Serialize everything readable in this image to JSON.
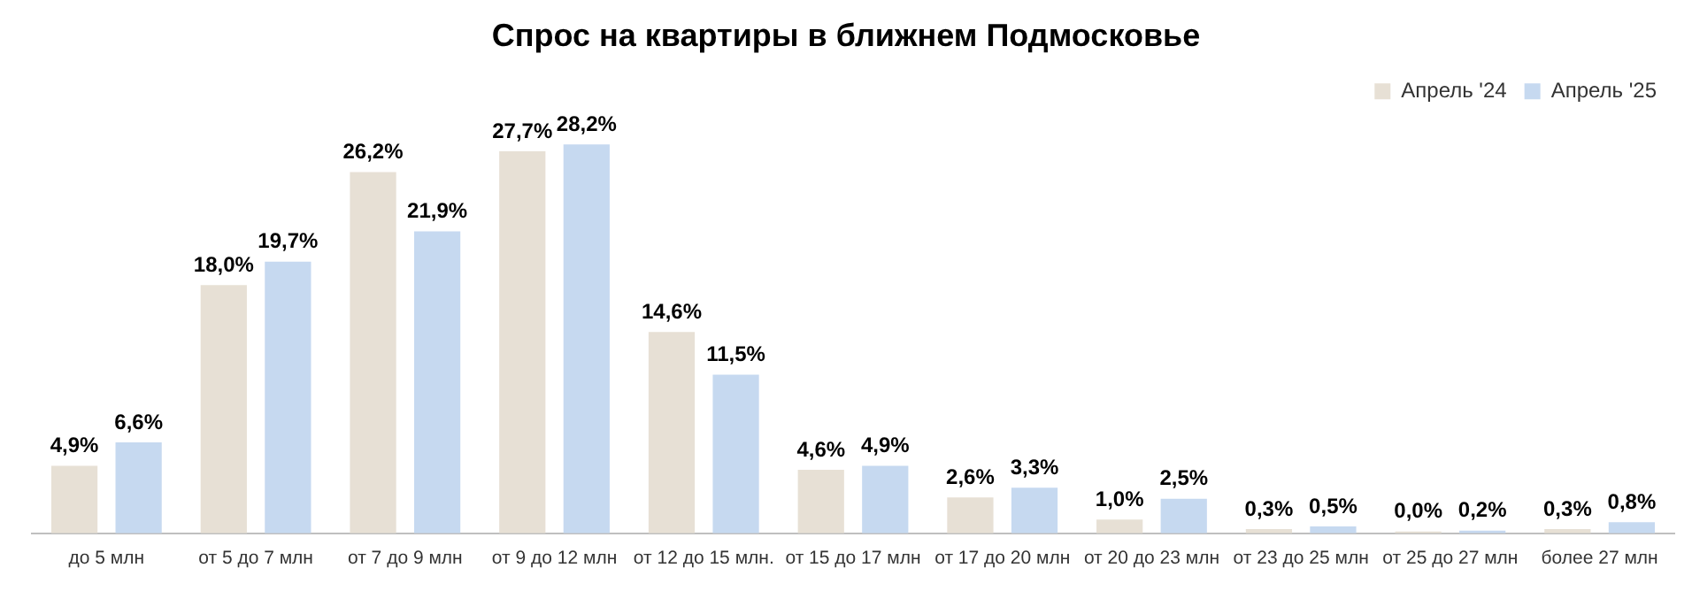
{
  "chart_data": {
    "type": "bar",
    "title": "Спрос на квартиры в ближнем Подмосковье",
    "categories": [
      "до 5 млн",
      "от 5 до 7 млн",
      "от 7 до 9 млн",
      "от 9 до 12 млн",
      "от 12 до 15 млн.",
      "от 15 до 17 млн",
      "от 17 до 20 млн",
      "от 20 до 23 млн",
      "от 23 до 25 млн",
      "от 25 до 27 млн",
      "более 27 млн"
    ],
    "series": [
      {
        "name": "Апрель '24",
        "color": "#e7e0d5",
        "values": [
          4.9,
          18.0,
          26.2,
          27.7,
          14.6,
          4.6,
          2.6,
          1.0,
          0.3,
          0.0,
          0.3
        ],
        "value_labels": [
          "4,9%",
          "18,0%",
          "26,2%",
          "27,7%",
          "14,6%",
          "4,6%",
          "2,6%",
          "1,0%",
          "0,3%",
          "0,0%",
          "0,3%"
        ]
      },
      {
        "name": "Апрель '25",
        "color": "#c6d9f0",
        "values": [
          6.6,
          19.7,
          21.9,
          28.2,
          11.5,
          4.9,
          3.3,
          2.5,
          0.5,
          0.2,
          0.8
        ],
        "value_labels": [
          "6,6%",
          "19,7%",
          "21,9%",
          "28,2%",
          "11,5%",
          "4,9%",
          "3,3%",
          "2,5%",
          "0,5%",
          "0,2%",
          "0,8%"
        ]
      }
    ],
    "legend": "top right",
    "tick_labels": "x",
    "grid": false
  }
}
